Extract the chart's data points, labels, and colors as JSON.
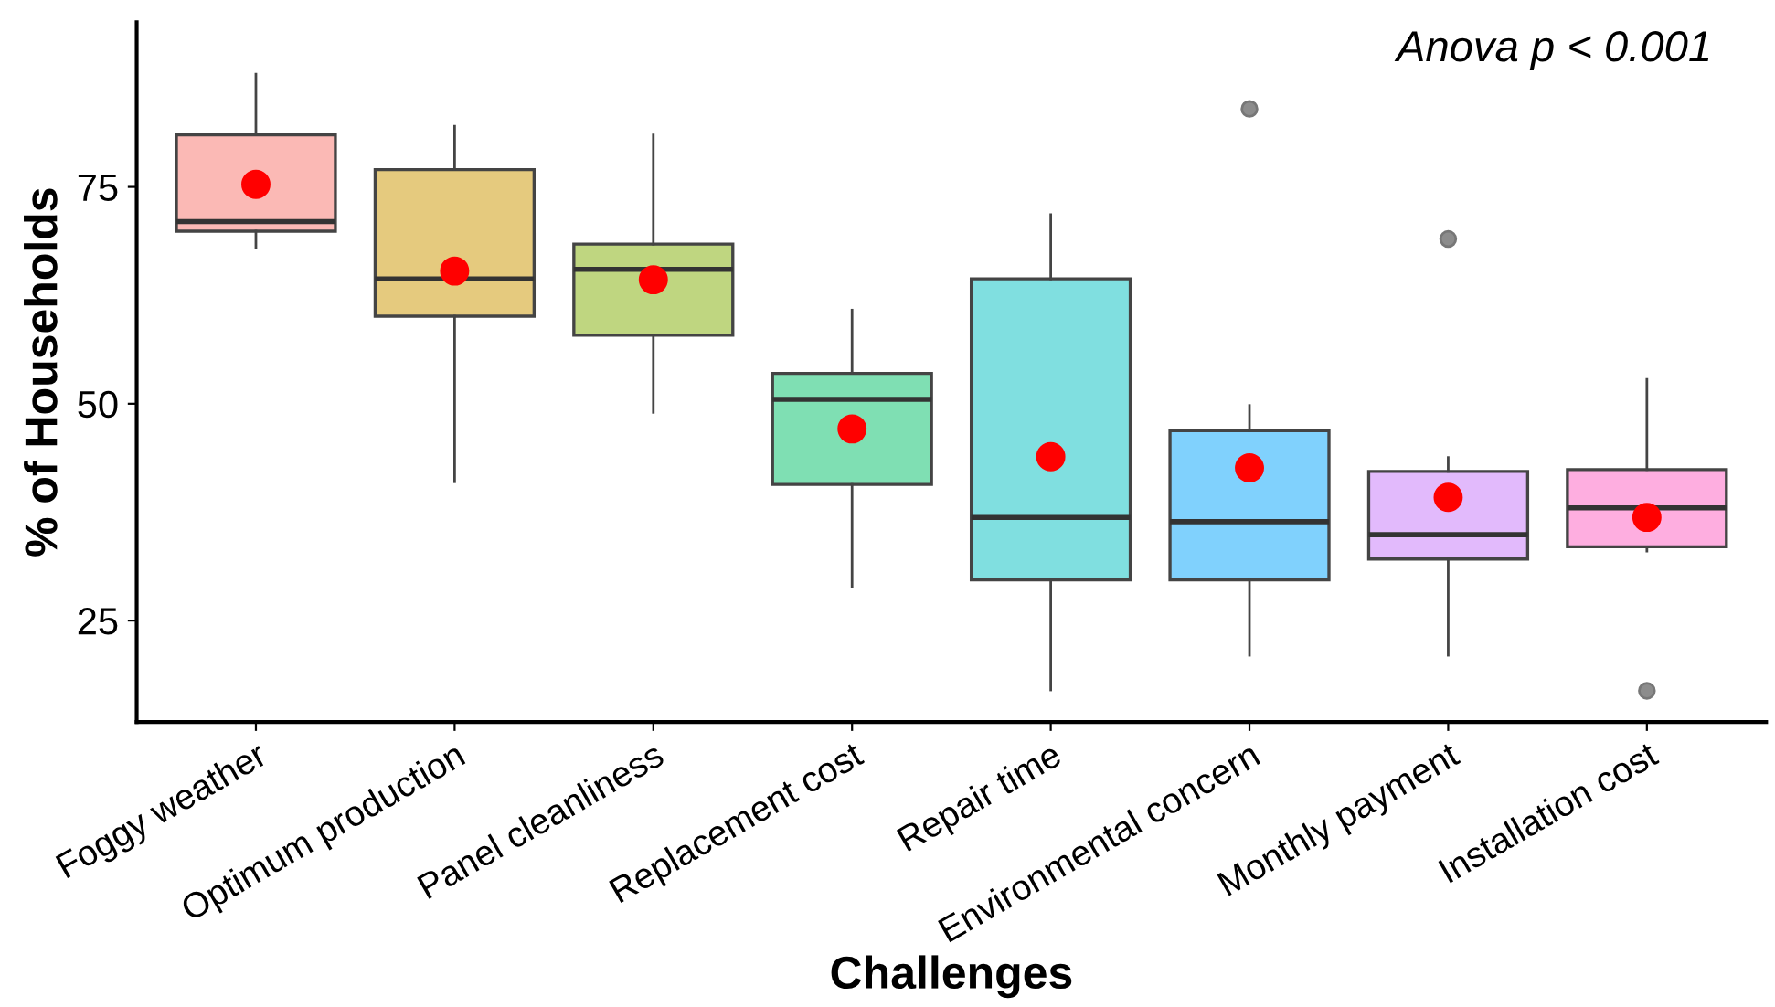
{
  "chart_data": {
    "type": "box",
    "xlabel": "Challenges",
    "ylabel": "% of Households",
    "annotations": [
      "Anova p < 0.001"
    ],
    "categories": [
      "Foggy weather",
      "Optimum production",
      "Panel cleanliness",
      "Replacement cost",
      "Repair time",
      "Environmental concern",
      "Monthly payment",
      "Installation cost"
    ],
    "colors": [
      "#fbb9b5",
      "#e5ca7e",
      "#bfd680",
      "#7fdfb3",
      "#80dfe0",
      "#80d1fd",
      "#e2bafc",
      "#feaee0"
    ],
    "boxes": [
      {
        "low": 68.0,
        "q1": 69.9,
        "median": 71.0,
        "q3": 81.0,
        "high": 88.0
      },
      {
        "low": 41.0,
        "q1": 60.1,
        "median": 64.4,
        "q3": 77.0,
        "high": 82.0
      },
      {
        "low": 49.0,
        "q1": 57.9,
        "median": 65.5,
        "q3": 68.4,
        "high": 81.0
      },
      {
        "low": 28.9,
        "q1": 40.7,
        "median": 50.5,
        "q3": 53.5,
        "high": 60.8
      },
      {
        "low": 17.0,
        "q1": 29.7,
        "median": 36.9,
        "q3": 64.4,
        "high": 71.8
      },
      {
        "low": 21.0,
        "q1": 29.7,
        "median": 36.4,
        "q3": 46.9,
        "high": 49.8,
        "outliers": [
          84.0
        ]
      },
      {
        "low": 21.0,
        "q1": 32.1,
        "median": 34.9,
        "q3": 42.2,
        "high": 43.8,
        "outliers": [
          69.0
        ]
      },
      {
        "low": 33.0,
        "q1": 33.5,
        "median": 38.0,
        "q3": 42.4,
        "high": 52.8,
        "outliers": [
          16.9
        ]
      }
    ],
    "series": [
      {
        "type": "scatter",
        "color": "#ff0000",
        "x": [
          "Foggy weather",
          "Optimum production",
          "Panel cleanliness",
          "Replacement cost",
          "Repair time",
          "Environmental concern",
          "Monthly payment",
          "Installation cost"
        ],
        "values": [
          75.3,
          65.3,
          64.3,
          47.1,
          43.9,
          42.6,
          39.2,
          36.9
        ]
      }
    ],
    "ylim": [
      13.3,
      94.0
    ],
    "yticks": [
      25,
      50,
      75
    ],
    "grid": false,
    "legend": false
  }
}
